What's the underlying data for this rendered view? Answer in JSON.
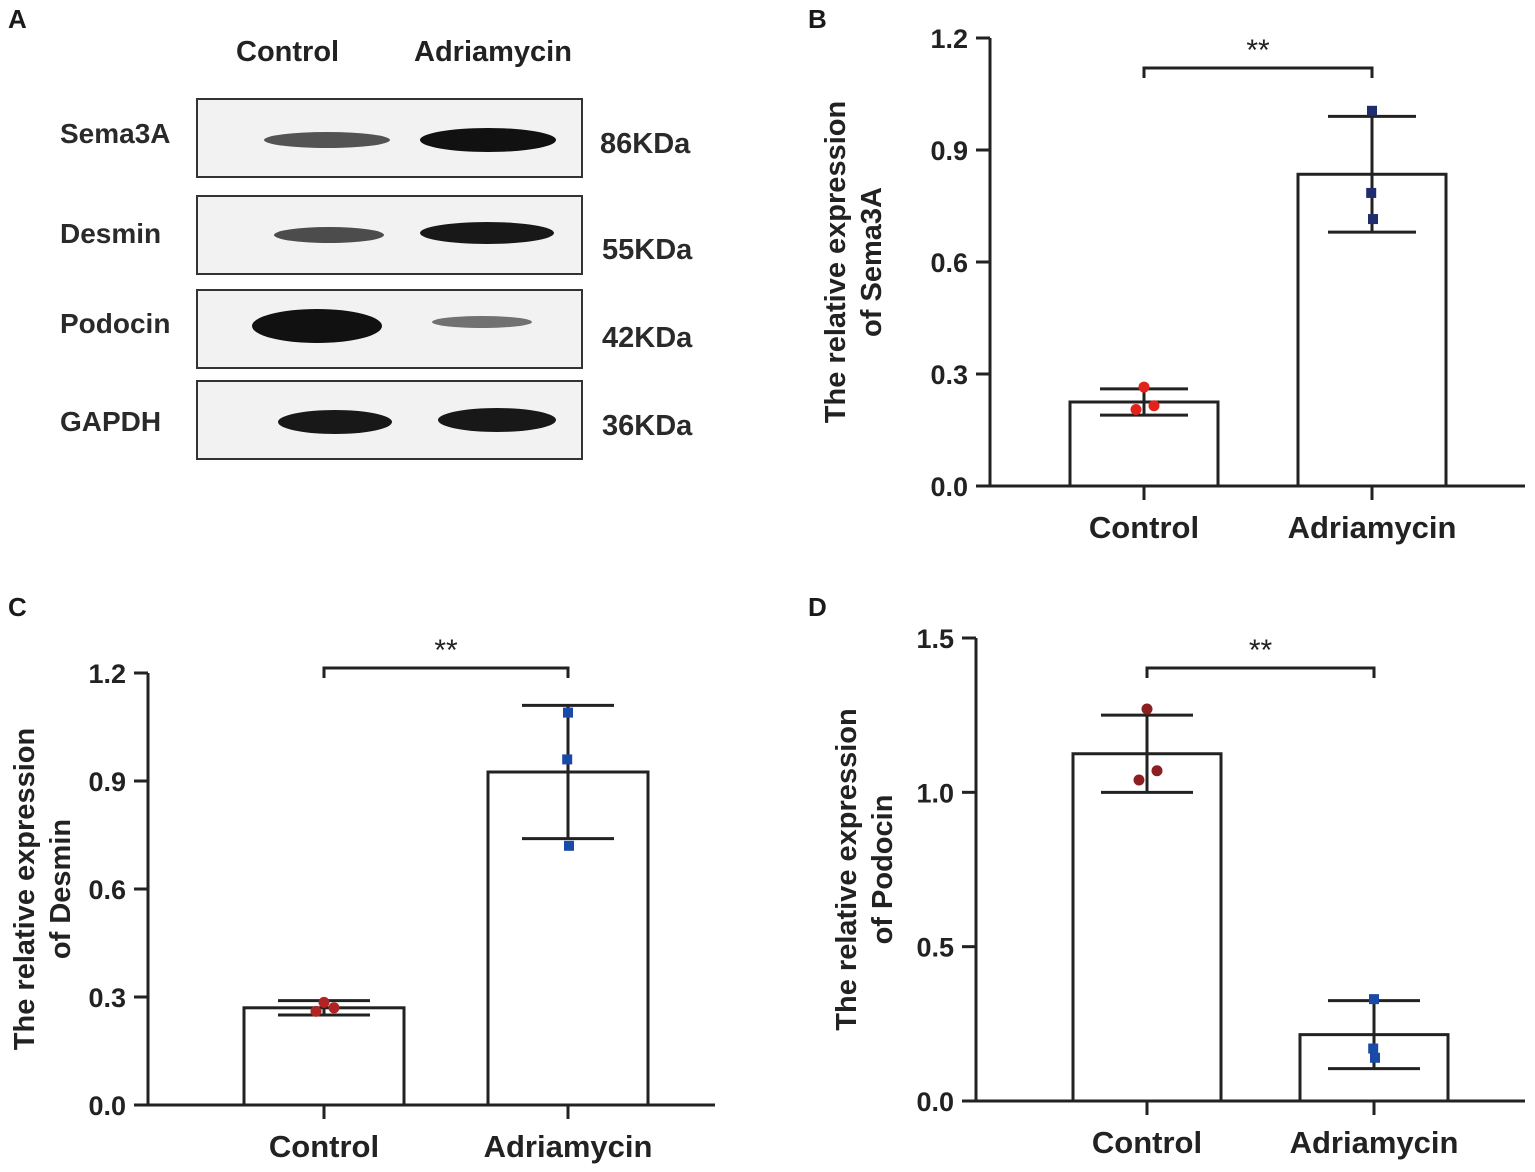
{
  "panel_labels": [
    "A",
    "B",
    "C",
    "D"
  ],
  "western_blot": {
    "column_labels": [
      "Control",
      "Adriamycin"
    ],
    "rows": [
      {
        "label": "Sema3A",
        "kda": "86KDa",
        "control_intensity": 0.55,
        "adriamycin_intensity": 1.0
      },
      {
        "label": "Desmin",
        "kda": "55KDa",
        "control_intensity": 0.6,
        "adriamycin_intensity": 0.95
      },
      {
        "label": "Podocin",
        "kda": "42KDa",
        "control_intensity": 1.0,
        "adriamycin_intensity": 0.35
      },
      {
        "label": "GAPDH",
        "kda": "36KDa",
        "control_intensity": 0.95,
        "adriamycin_intensity": 0.95
      }
    ]
  },
  "chart_data": [
    {
      "panel": "B",
      "type": "bar",
      "categories": [
        "Control",
        "Adriamycin"
      ],
      "values": [
        0.225,
        0.835
      ],
      "error": [
        0.035,
        0.155
      ],
      "points": [
        [
          0.265,
          0.205,
          0.215
        ],
        [
          1.005,
          0.785,
          0.715
        ]
      ],
      "point_colors": [
        "#e0241b",
        "#1f2d6e"
      ],
      "ylabel_line1": "The relative expression",
      "ylabel_line2": "of Sema3A",
      "ylim": [
        0,
        1.2
      ],
      "yticks": [
        "0.0",
        "0.3",
        "0.6",
        "0.9",
        "1.2"
      ],
      "significance": "**"
    },
    {
      "panel": "C",
      "type": "bar",
      "categories": [
        "Control",
        "Adriamycin"
      ],
      "values": [
        0.27,
        0.925
      ],
      "error": [
        0.02,
        0.185
      ],
      "points": [
        [
          0.285,
          0.26,
          0.27
        ],
        [
          1.09,
          0.96,
          0.72
        ]
      ],
      "point_colors": [
        "#b02424",
        "#1a4aa8"
      ],
      "ylabel_line1": "The relative expression",
      "ylabel_line2": "of  Desmin",
      "ylim": [
        0,
        1.2
      ],
      "yticks": [
        "0.0",
        "0.3",
        "0.6",
        "0.9",
        "1.2"
      ],
      "significance": "**"
    },
    {
      "panel": "D",
      "type": "bar",
      "categories": [
        "Control",
        "Adriamycin"
      ],
      "values": [
        1.125,
        0.215
      ],
      "error": [
        0.125,
        0.11
      ],
      "points": [
        [
          1.27,
          1.04,
          1.07
        ],
        [
          0.33,
          0.17,
          0.14
        ]
      ],
      "point_colors": [
        "#8c1f1f",
        "#1a4aa8"
      ],
      "ylabel_line1": "The relative expression",
      "ylabel_line2": "of Podocin",
      "ylim": [
        0,
        1.5
      ],
      "yticks": [
        "0.0",
        "0.5",
        "1.0",
        "1.5"
      ],
      "significance": "**"
    }
  ]
}
